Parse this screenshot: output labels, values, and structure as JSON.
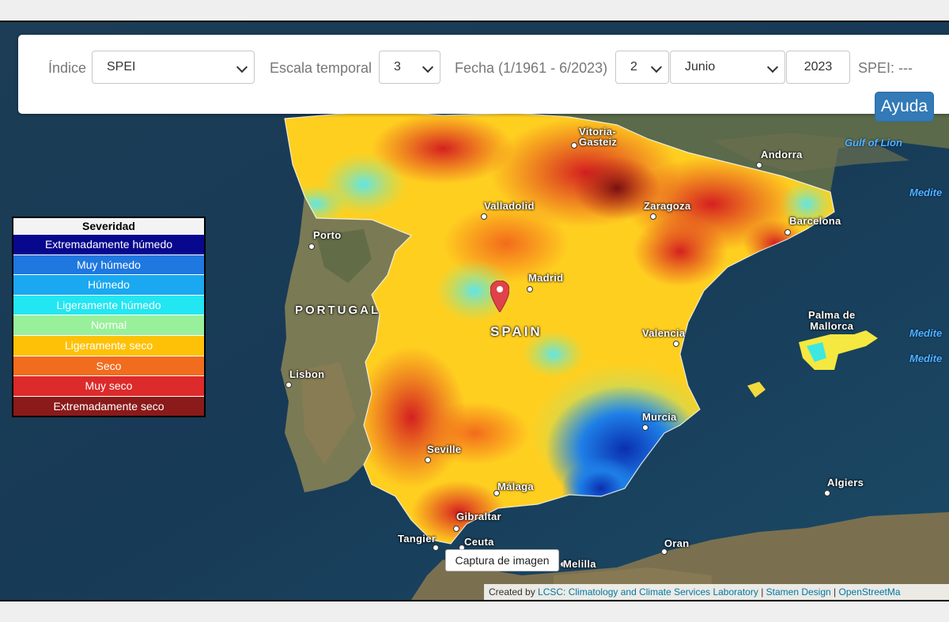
{
  "toolbar": {
    "index_label": "Índice",
    "index_value": "SPEI",
    "scale_label": "Escala temporal",
    "scale_value": "3",
    "date_label": "Fecha (1/1961 - 6/2023)",
    "day_value": "2",
    "month_value": "Junio",
    "year_value": "2023",
    "spei_readout": "SPEI: ---",
    "help_label": "Ayuda"
  },
  "legend": {
    "title": "Severidad",
    "items": [
      {
        "label": "Extremadamente húmedo",
        "color": "#08088f"
      },
      {
        "label": "Muy húmedo",
        "color": "#1f77e0"
      },
      {
        "label": "Húmedo",
        "color": "#1aa8f0"
      },
      {
        "label": "Ligeramente húmedo",
        "color": "#22e6f2"
      },
      {
        "label": "Normal",
        "color": "#98f09a"
      },
      {
        "label": "Ligeramente seco",
        "color": "#ffc107"
      },
      {
        "label": "Seco",
        "color": "#f26c1e"
      },
      {
        "label": "Muy seco",
        "color": "#dd2a2a"
      },
      {
        "label": "Extremadamente seco",
        "color": "#8b1a1a"
      }
    ]
  },
  "map": {
    "capture_button": "Captura de imagen",
    "attribution": {
      "prefix": "Created by",
      "lcsc": "LCSC: Climatology and Climate Services Laboratory",
      "sep1": "|",
      "stamen": "Stamen Design",
      "sep2": "|",
      "osm": "OpenStreetMa"
    },
    "countries": {
      "portugal": "PORTUGAL",
      "spain": "SPAIN"
    },
    "seas": {
      "gulf_of_lion": "Gulf of Lion",
      "medite1": "Medite",
      "medite2": "Medite",
      "medite3": "Medite"
    },
    "cities": {
      "vitoria": "Vitoria-\nGasteiz",
      "andorra": "Andorra",
      "valladolid": "Valladolid",
      "zaragoza": "Zaragoza",
      "barcelona": "Barcelona",
      "porto": "Porto",
      "madrid": "Madrid",
      "valencia": "Valencia",
      "palma": "Palma de\nMallorca",
      "lisbon": "Lisbon",
      "murcia": "Murcia",
      "seville": "Seville",
      "malaga": "Málaga",
      "algiers": "Algiers",
      "gibraltar": "Gibraltar",
      "tangier": "Tangier",
      "ceuta": "Ceuta",
      "oran": "Oran",
      "melilla": "Melilla"
    }
  }
}
